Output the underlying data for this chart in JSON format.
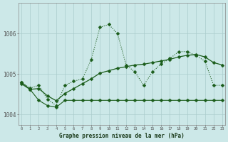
{
  "xlabel": "Graphe pression niveau de la mer (hPa)",
  "background_color": "#cce8e8",
  "grid_color": "#aacccc",
  "line_color": "#1a5c1a",
  "ylim": [
    1003.75,
    1006.75
  ],
  "xlim": [
    -0.3,
    23.3
  ],
  "yticks": [
    1004,
    1005,
    1006
  ],
  "xticks": [
    0,
    1,
    2,
    3,
    4,
    5,
    6,
    7,
    8,
    9,
    10,
    11,
    12,
    13,
    14,
    15,
    16,
    17,
    18,
    19,
    20,
    21,
    22,
    23
  ],
  "line1": [
    1004.8,
    1004.65,
    1004.72,
    1004.38,
    1004.22,
    1004.72,
    1004.82,
    1004.88,
    1005.35,
    1006.15,
    1006.22,
    1006.0,
    1005.22,
    1005.05,
    1004.72,
    1005.05,
    1005.25,
    1005.38,
    1005.55,
    1005.55,
    1005.45,
    1005.32,
    1004.72,
    1004.72
  ],
  "line2": [
    1004.76,
    1004.62,
    1004.64,
    1004.46,
    1004.34,
    1004.52,
    1004.64,
    1004.76,
    1004.88,
    1005.02,
    1005.08,
    1005.14,
    1005.18,
    1005.22,
    1005.24,
    1005.28,
    1005.32,
    1005.36,
    1005.42,
    1005.46,
    1005.48,
    1005.42,
    1005.28,
    1005.22
  ],
  "line3": [
    1004.8,
    1004.62,
    1004.35,
    1004.22,
    1004.18,
    1004.35,
    1004.35,
    1004.35,
    1004.35,
    1004.35,
    1004.35,
    1004.35,
    1004.35,
    1004.35,
    1004.35,
    1004.35,
    1004.35,
    1004.35,
    1004.35,
    1004.35,
    1004.35,
    1004.35,
    1004.35,
    1004.35
  ]
}
